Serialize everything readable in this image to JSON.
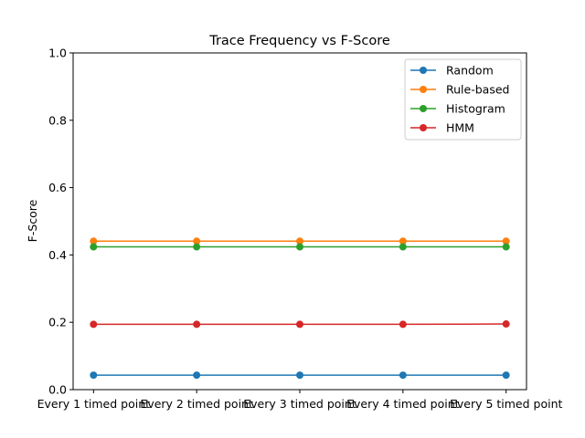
{
  "chart_data": {
    "type": "line",
    "title": "Trace Frequency vs F-Score",
    "xlabel": "",
    "ylabel": "F-Score",
    "ylim": [
      0,
      1
    ],
    "yticks": [
      "0.0",
      "0.2",
      "0.4",
      "0.6",
      "0.8",
      "1.0"
    ],
    "categories": [
      "Every 1 timed point",
      "Every 2 timed point",
      "Every 3 timed point",
      "Every 4 timed point",
      "Every 5 timed point"
    ],
    "series": [
      {
        "name": "Random",
        "color": "#1f77b4",
        "values": [
          0.043,
          0.043,
          0.043,
          0.043,
          0.043
        ]
      },
      {
        "name": "Rule-based",
        "color": "#ff7f0e",
        "values": [
          0.441,
          0.441,
          0.441,
          0.441,
          0.441
        ]
      },
      {
        "name": "Histogram",
        "color": "#2ca02c",
        "values": [
          0.424,
          0.424,
          0.424,
          0.424,
          0.424
        ]
      },
      {
        "name": "HMM",
        "color": "#d62728",
        "values": [
          0.194,
          0.194,
          0.194,
          0.194,
          0.195
        ]
      }
    ],
    "legend": "top-right",
    "grid": false
  }
}
